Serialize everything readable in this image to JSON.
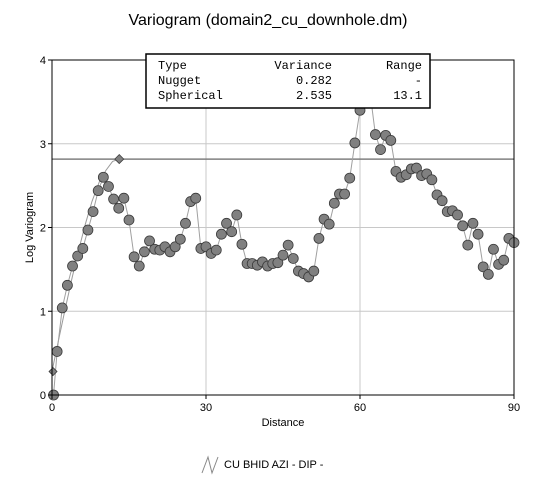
{
  "title": "Variogram (domain2_cu_downhole.dm)",
  "chart_data": {
    "type": "scatter",
    "xlabel": "Distance",
    "ylabel": "Log Variogram",
    "xlim": [
      0,
      90
    ],
    "ylim": [
      0,
      4
    ],
    "x_ticks": [
      "0",
      "30",
      "60",
      "90"
    ],
    "y_ticks": [
      "0",
      "1",
      "2",
      "3",
      "4"
    ],
    "grid": true,
    "sill": 2.817,
    "model_table": {
      "headers": [
        "Type",
        "Variance",
        "Range"
      ],
      "rows": [
        [
          "Nugget",
          "0.282",
          "-"
        ],
        [
          "Spherical",
          "2.535",
          "13.1"
        ]
      ]
    },
    "model_curve": {
      "x": [
        0,
        1.3,
        2.6,
        3.9,
        5.2,
        6.5,
        7.8,
        9.2,
        10.5,
        11.8,
        13.1
      ],
      "y": [
        0.282,
        0.663,
        1.036,
        1.395,
        1.732,
        2.041,
        2.313,
        2.542,
        2.682,
        2.789,
        2.817
      ]
    },
    "model_marker": {
      "x": 13.1,
      "y": 2.817
    },
    "series": [
      {
        "name": "CU BHID  AZI - DIP -",
        "x": [
          0.3,
          1,
          2,
          3,
          4,
          5,
          6,
          7,
          8,
          9,
          10,
          11,
          12,
          13,
          14,
          15,
          16,
          17,
          18,
          19,
          20,
          21,
          22,
          23,
          24,
          25,
          26,
          27,
          28,
          29,
          30,
          31,
          32,
          33,
          34,
          35,
          36,
          37,
          38,
          39,
          40,
          41,
          42,
          43,
          44,
          45,
          46,
          47,
          48,
          49,
          50,
          51,
          52,
          53,
          54,
          55,
          56,
          57,
          58,
          59,
          60,
          61,
          62,
          63,
          64,
          65,
          66,
          67,
          68,
          69,
          70,
          71,
          72,
          73,
          74,
          75,
          76,
          77,
          78,
          79,
          80,
          81,
          82,
          83,
          84,
          85,
          86,
          87,
          88,
          89,
          90
        ],
        "y": [
          0.0,
          0.52,
          1.04,
          1.31,
          1.54,
          1.66,
          1.75,
          1.97,
          2.19,
          2.44,
          2.6,
          2.49,
          2.34,
          2.23,
          2.35,
          2.09,
          1.65,
          1.54,
          1.71,
          1.84,
          1.74,
          1.73,
          1.77,
          1.71,
          1.77,
          1.86,
          2.05,
          2.31,
          2.35,
          1.75,
          1.77,
          1.69,
          1.73,
          1.92,
          2.05,
          1.95,
          2.15,
          1.8,
          1.57,
          1.57,
          1.55,
          1.59,
          1.54,
          1.57,
          1.58,
          1.67,
          1.79,
          1.63,
          1.48,
          1.45,
          1.41,
          1.48,
          1.87,
          2.1,
          2.04,
          2.29,
          2.4,
          2.4,
          2.59,
          3.01,
          3.4,
          3.68,
          3.59,
          3.11,
          2.93,
          3.1,
          3.04,
          2.67,
          2.6,
          2.63,
          2.7,
          2.71,
          2.62,
          2.64,
          2.57,
          2.39,
          2.32,
          2.19,
          2.2,
          2.15,
          2.02,
          1.79,
          2.05,
          1.92,
          1.53,
          1.44,
          1.74,
          1.56,
          1.61,
          1.87,
          1.82
        ]
      }
    ],
    "extra_points": [
      {
        "x": 0.2,
        "y": 0.28
      }
    ],
    "legend": {
      "label": "CU BHID  AZI - DIP -",
      "placement": "bottom-center"
    }
  }
}
